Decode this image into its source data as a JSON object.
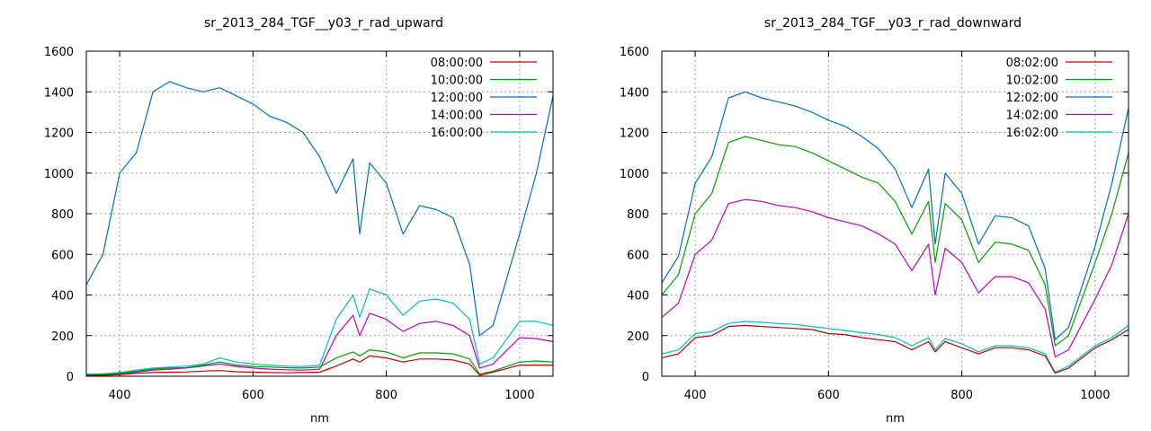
{
  "chart_data": [
    {
      "type": "line",
      "title": "sr_2013_284_TGF__y03_r_rad_upward",
      "xlabel": "nm",
      "ylabel": "",
      "xlim": [
        350,
        1050
      ],
      "ylim": [
        0,
        1600
      ],
      "xticks": [
        400,
        600,
        800,
        1000
      ],
      "yticks": [
        0,
        200,
        400,
        600,
        800,
        1000,
        1200,
        1400,
        1600
      ],
      "grid": true,
      "legend_position": "top-right",
      "x": [
        350,
        375,
        400,
        425,
        450,
        475,
        500,
        525,
        550,
        575,
        600,
        625,
        650,
        675,
        700,
        725,
        750,
        760,
        775,
        800,
        825,
        850,
        875,
        900,
        925,
        940,
        960,
        1000,
        1025,
        1050
      ],
      "series": [
        {
          "name": "08:00:00",
          "color": "#c00000",
          "values": [
            2,
            4,
            8,
            14,
            18,
            20,
            21,
            25,
            28,
            22,
            20,
            18,
            17,
            18,
            20,
            50,
            85,
            70,
            100,
            90,
            70,
            85,
            85,
            80,
            60,
            5,
            20,
            55,
            55,
            55
          ]
        },
        {
          "name": "10:00:00",
          "color": "#00a000",
          "values": [
            8,
            10,
            14,
            25,
            35,
            40,
            42,
            55,
            70,
            55,
            48,
            45,
            42,
            40,
            45,
            90,
            120,
            100,
            130,
            120,
            90,
            115,
            115,
            110,
            85,
            10,
            25,
            70,
            75,
            70
          ]
        },
        {
          "name": "12:00:00",
          "color": "#0070c0",
          "values": [
            450,
            600,
            1000,
            1100,
            1400,
            1450,
            1420,
            1400,
            1420,
            1380,
            1340,
            1280,
            1250,
            1200,
            1080,
            900,
            1070,
            700,
            1050,
            950,
            700,
            840,
            820,
            780,
            550,
            200,
            250,
            700,
            1000,
            1380
          ]
        },
        {
          "name": "14:00:00",
          "color": "#c000c0",
          "values": [
            5,
            7,
            12,
            20,
            30,
            35,
            40,
            50,
            60,
            48,
            40,
            35,
            32,
            30,
            35,
            200,
            300,
            200,
            310,
            280,
            220,
            260,
            270,
            250,
            200,
            40,
            60,
            190,
            185,
            170
          ]
        },
        {
          "name": "16:00:00",
          "color": "#00c0c0",
          "values": [
            10,
            12,
            18,
            30,
            40,
            45,
            50,
            60,
            90,
            70,
            60,
            55,
            50,
            48,
            55,
            280,
            400,
            290,
            430,
            400,
            300,
            370,
            380,
            360,
            280,
            60,
            90,
            270,
            270,
            250
          ]
        }
      ]
    },
    {
      "type": "line",
      "title": "sr_2013_284_TGF__y03_r_rad_downward",
      "xlabel": "nm",
      "ylabel": "",
      "xlim": [
        350,
        1050
      ],
      "ylim": [
        0,
        1600
      ],
      "xticks": [
        400,
        600,
        800,
        1000
      ],
      "yticks": [
        0,
        200,
        400,
        600,
        800,
        1000,
        1200,
        1400,
        1600
      ],
      "grid": true,
      "legend_position": "top-right",
      "x": [
        350,
        375,
        400,
        425,
        450,
        475,
        500,
        525,
        550,
        575,
        600,
        625,
        650,
        675,
        700,
        725,
        750,
        760,
        775,
        800,
        825,
        850,
        875,
        900,
        925,
        940,
        960,
        1000,
        1025,
        1050
      ],
      "series": [
        {
          "name": "08:02:00",
          "color": "#c00000",
          "values": [
            90,
            110,
            190,
            200,
            245,
            250,
            245,
            240,
            235,
            230,
            210,
            205,
            190,
            180,
            170,
            130,
            170,
            120,
            170,
            140,
            110,
            140,
            140,
            130,
            100,
            15,
            40,
            140,
            180,
            230
          ]
        },
        {
          "name": "10:02:00",
          "color": "#00a000",
          "values": [
            400,
            500,
            800,
            900,
            1150,
            1180,
            1160,
            1140,
            1130,
            1100,
            1060,
            1020,
            980,
            950,
            860,
            700,
            860,
            560,
            850,
            770,
            560,
            660,
            650,
            620,
            450,
            150,
            200,
            560,
            800,
            1100
          ]
        },
        {
          "name": "12:02:00",
          "color": "#0070c0",
          "values": [
            460,
            590,
            950,
            1080,
            1370,
            1400,
            1370,
            1350,
            1330,
            1300,
            1260,
            1230,
            1180,
            1120,
            1020,
            830,
            1020,
            650,
            1000,
            900,
            650,
            790,
            780,
            740,
            530,
            180,
            240,
            640,
            950,
            1320
          ]
        },
        {
          "name": "14:02:00",
          "color": "#c000c0",
          "values": [
            290,
            360,
            600,
            670,
            850,
            870,
            860,
            840,
            830,
            810,
            780,
            760,
            740,
            700,
            650,
            520,
            650,
            400,
            630,
            560,
            410,
            490,
            490,
            460,
            330,
            95,
            130,
            380,
            550,
            800
          ]
        },
        {
          "name": "16:02:00",
          "color": "#00c0c0",
          "values": [
            110,
            130,
            210,
            220,
            260,
            270,
            265,
            260,
            255,
            245,
            235,
            225,
            215,
            205,
            190,
            150,
            190,
            130,
            185,
            160,
            120,
            150,
            150,
            140,
            110,
            20,
            50,
            150,
            190,
            250
          ]
        }
      ]
    }
  ]
}
